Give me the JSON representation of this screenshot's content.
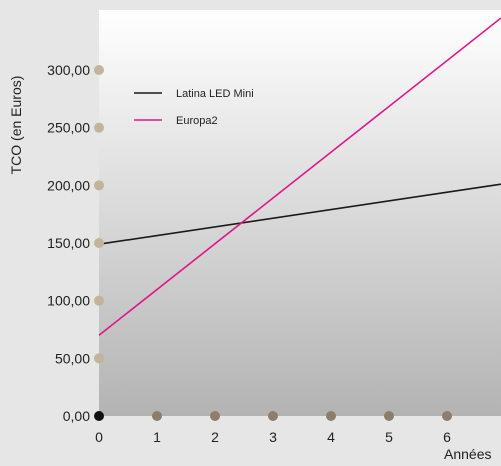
{
  "chart_data": {
    "type": "line",
    "title": "",
    "xlabel": "Années",
    "ylabel": "TCO (en Euros)",
    "xlim": [
      0,
      6.93
    ],
    "ylim": [
      0,
      345
    ],
    "x_ticks": [
      "0",
      "1",
      "2",
      "3",
      "4",
      "5",
      "6"
    ],
    "y_ticks": [
      "0,00",
      "50,00",
      "100,00",
      "150,00",
      "200,00",
      "250,00",
      "300,00"
    ],
    "legend_position": "top-left",
    "grid": false,
    "x": [
      0,
      6.93
    ],
    "series": [
      {
        "name": "Latina LED Mini",
        "color": "#1a1a1a",
        "values": [
          149,
          201
        ]
      },
      {
        "name": "Europa2",
        "color": "#e0158a",
        "values": [
          70,
          345
        ]
      }
    ],
    "colors": {
      "tick_dot": "#c2b39c",
      "x_tick_dot": "#8d7d6c",
      "origin_dot": "#111111",
      "plot_top": "#ffffff",
      "plot_bottom": "#b3b3b3"
    }
  }
}
